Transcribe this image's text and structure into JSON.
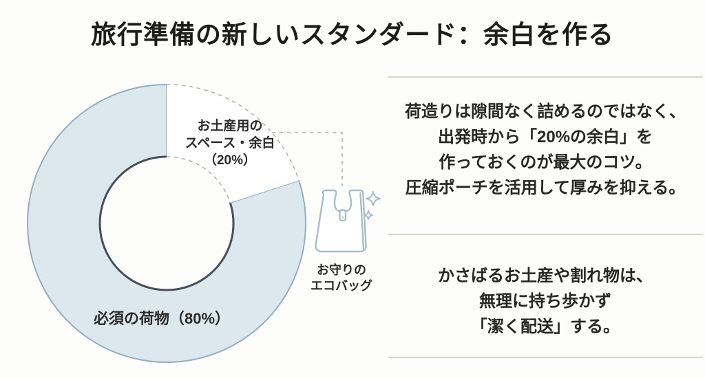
{
  "title": "旅行準備の新しいスタンダード：余白を作る",
  "chart_data": {
    "type": "pie",
    "subtype": "donut",
    "title": "旅行準備の新しいスタンダード：余白を作る",
    "start_angle_deg": 0,
    "direction": "clockwise",
    "legend": "none",
    "slices": [
      {
        "name": "必須の荷物",
        "value": 80,
        "label": "必須の荷物（80%）",
        "fill": "#dde8ee",
        "outline_style": "solid"
      },
      {
        "name": "お土産用のスペース・余白",
        "value": 20,
        "label_lines": [
          "お土産用の",
          "スペース・余白",
          "（20%）"
        ],
        "fill": "#ffffff",
        "outline_style": "dashed"
      }
    ],
    "annotation": {
      "icon": "eco-bag-with-sparkles",
      "label_lines": [
        "お守りの",
        "エコバッグ"
      ]
    }
  },
  "right_panel": {
    "block1_lines": [
      "荷造りは隙間なく詰めるのではなく、",
      "出発時から「20%の余白」を",
      "作っておくのが最大のコツ。",
      "圧縮ポーチを活用して厚みを抑える。"
    ],
    "block2_lines": [
      "かさばるお土産や割れ物は、",
      "無理に持ち歩かず",
      "「潔く配送」する。"
    ]
  },
  "colors": {
    "background": "#fdfdfb",
    "slice_fill": "#dde8ee",
    "slice_stroke": "#94adbc",
    "inner_ring_stroke": "#474f58",
    "dashed_line": "#b7b2a8",
    "bag_stroke": "#a9bcc8",
    "divider": "#d8d4c6",
    "text": "#262626"
  }
}
